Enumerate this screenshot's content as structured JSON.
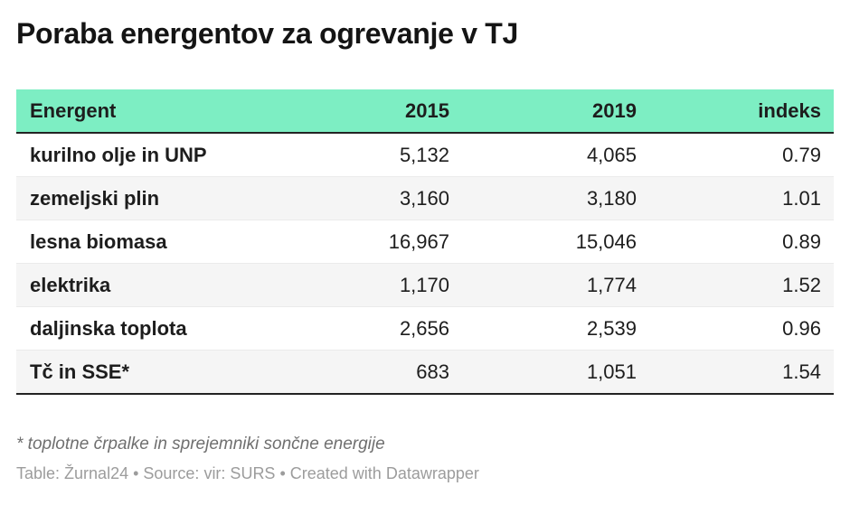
{
  "title": "Poraba energentov za ogrevanje v TJ",
  "colors": {
    "header_bg": "#7deec3",
    "header_text": "#1d1d1d",
    "body_text": "#1d1d1d",
    "row_alt_bg": "#f5f5f5",
    "dark_rule": "#232323",
    "row_divider": "#ebebeb",
    "footnote_text": "#6f6f6f",
    "attribution_text": "#9c9c9c"
  },
  "table": {
    "columns": {
      "c0": "Energent",
      "c1": "2015",
      "c2": "2019",
      "c3": "indeks"
    },
    "rows": [
      {
        "label": "kurilno olje in UNP",
        "v2015": "5,132",
        "v2019": "4,065",
        "indeks": "0.79"
      },
      {
        "label": "zemeljski plin",
        "v2015": "3,160",
        "v2019": "3,180",
        "indeks": "1.01"
      },
      {
        "label": "lesna biomasa",
        "v2015": "16,967",
        "v2019": "15,046",
        "indeks": "0.89"
      },
      {
        "label": "elektrika",
        "v2015": "1,170",
        "v2019": "1,774",
        "indeks": "1.52"
      },
      {
        "label": "daljinska toplota",
        "v2015": "2,656",
        "v2019": "2,539",
        "indeks": "0.96"
      },
      {
        "label": "Tč in SSE*",
        "v2015": "683",
        "v2019": "1,051",
        "indeks": "1.54"
      }
    ]
  },
  "footer": {
    "footnote": "* toplotne črpalke in sprejemniki sončne energije",
    "attribution": {
      "prefix": "Table: ",
      "byline": "Žurnal24",
      "sep1": " • Source: ",
      "source": "vir: SURS",
      "sep2": " • ",
      "created": "Created with Datawrapper"
    }
  },
  "chart_data": {
    "type": "table",
    "title": "Poraba energentov za ogrevanje v TJ",
    "columns": [
      "Energent",
      "2015",
      "2019",
      "indeks"
    ],
    "rows": [
      [
        "kurilno olje in UNP",
        5132,
        4065,
        0.79
      ],
      [
        "zemeljski plin",
        3160,
        3180,
        1.01
      ],
      [
        "lesna biomasa",
        16967,
        15046,
        0.89
      ],
      [
        "elektrika",
        1170,
        1774,
        1.52
      ],
      [
        "daljinska toplota",
        2656,
        2539,
        0.96
      ],
      [
        "Tč in SSE*",
        683,
        1051,
        1.54
      ]
    ],
    "footnote": "* toplotne črpalke in sprejemniki sončne energije",
    "byline": "Žurnal24",
    "source": "vir: SURS",
    "created_with": "Datawrapper",
    "layout_hints": {
      "header_bg": "#7deec3",
      "zebra_rows": true,
      "numeric_align": "right"
    }
  }
}
